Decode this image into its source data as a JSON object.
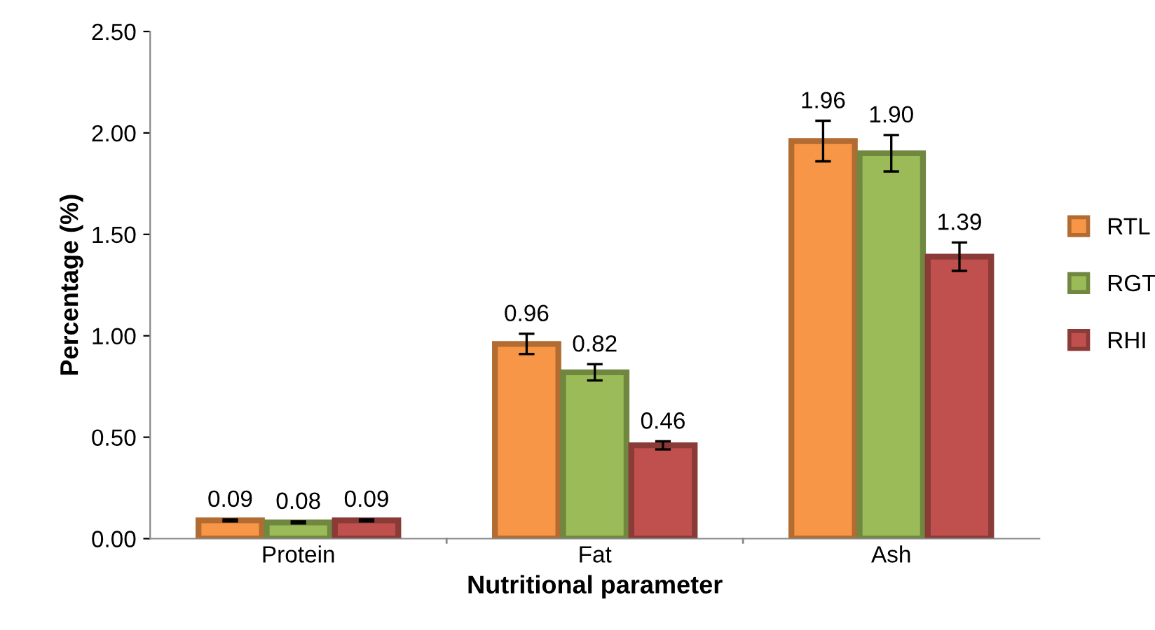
{
  "chart_data": {
    "type": "bar",
    "xlabel": "Nutritional parameter",
    "ylabel": "Percentage (%)",
    "categories": [
      "Protein",
      "Fat",
      "Ash"
    ],
    "series": [
      {
        "name": "RTL",
        "color": "#f79646",
        "values": [
          0.09,
          0.96,
          1.96
        ],
        "errors": [
          0.005,
          0.05,
          0.1
        ],
        "value_labels": [
          "0.09",
          "0.96",
          "1.96"
        ]
      },
      {
        "name": "RGT",
        "color": "#9bbb59",
        "values": [
          0.08,
          0.82,
          1.9
        ],
        "errors": [
          0.005,
          0.04,
          0.09
        ],
        "value_labels": [
          "0.08",
          "0.82",
          "1.90"
        ]
      },
      {
        "name": "RHI",
        "color": "#c0504d",
        "values": [
          0.09,
          0.46,
          1.39
        ],
        "errors": [
          0.005,
          0.02,
          0.07
        ],
        "value_labels": [
          "0.09",
          "0.46",
          "1.39"
        ]
      }
    ],
    "ylim": [
      0,
      2.5
    ],
    "yticks": [
      {
        "value": 0,
        "label": "0.00"
      },
      {
        "value": 0.5,
        "label": "0.50"
      },
      {
        "value": 1,
        "label": "1.00"
      },
      {
        "value": 1.5,
        "label": "1.50"
      },
      {
        "value": 2,
        "label": "2.00"
      },
      {
        "value": 2.5,
        "label": "2.50"
      }
    ],
    "legend": "right",
    "grid": false
  }
}
